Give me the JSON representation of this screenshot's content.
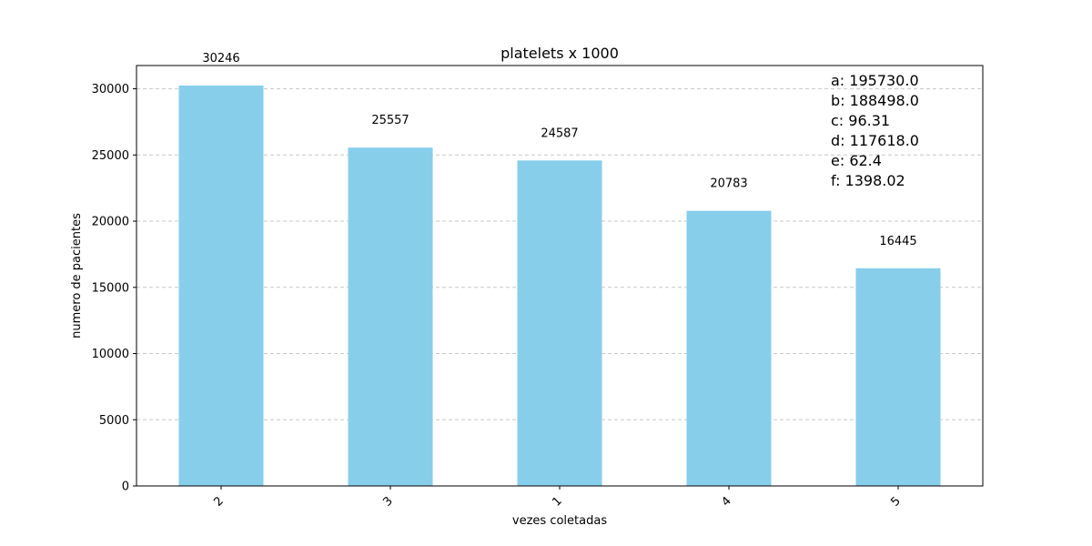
{
  "chart_data": {
    "type": "bar",
    "title": "platelets x 1000",
    "xlabel": "vezes coletadas",
    "ylabel": "numero de pacientes",
    "categories": [
      "2",
      "3",
      "1",
      "4",
      "5"
    ],
    "values": [
      30246,
      25557,
      24587,
      20783,
      16445
    ],
    "data_labels": [
      "30246",
      "25557",
      "24587",
      "20783",
      "16445"
    ],
    "ylim": [
      0,
      31758
    ],
    "yticks": [
      0,
      5000,
      10000,
      15000,
      20000,
      25000,
      30000
    ],
    "ytick_labels": [
      "0",
      "5000",
      "10000",
      "15000",
      "20000",
      "25000",
      "30000"
    ],
    "x_tick_rotation": "45 degrees",
    "grid": "horizontal dashed",
    "legend": "none",
    "bar_color": "#87CEEB",
    "grid_color": "#c8c8c8",
    "annotations": [
      "a: 195730.0",
      "b: 188498.0",
      "c: 96.31",
      "d: 117618.0",
      "e: 62.4",
      "f: 1398.02"
    ],
    "annotation_placement": "top-right"
  }
}
